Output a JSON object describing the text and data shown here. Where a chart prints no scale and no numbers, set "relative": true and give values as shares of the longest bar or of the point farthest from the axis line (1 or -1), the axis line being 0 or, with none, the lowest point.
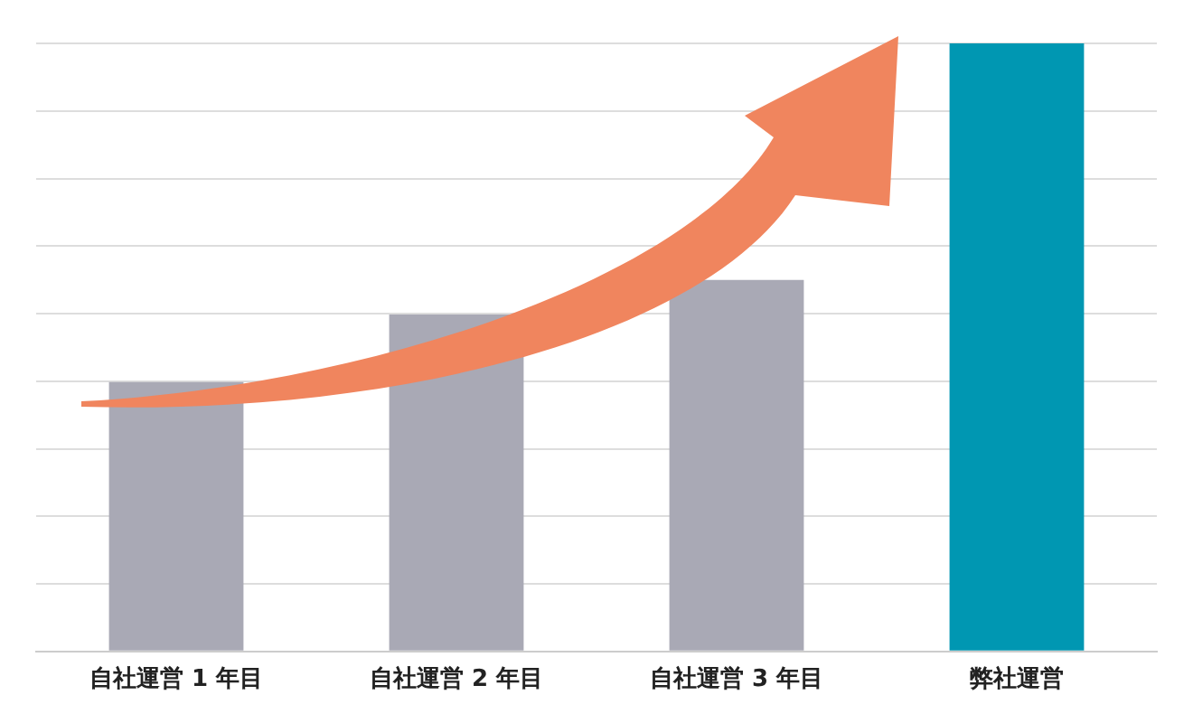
{
  "chart_data": {
    "type": "bar",
    "relative": true,
    "categories": [
      "自社運営 1 年目",
      "自社運営 2 年目",
      "自社運営 3 年目",
      "弊社運営"
    ],
    "values": [
      0.443,
      0.554,
      0.611,
      1
    ],
    "colors": [
      "#a9a9b5",
      "#a9a9b5",
      "#a9a9b5",
      "#0097b2"
    ],
    "grid": "y",
    "legend": false
  }
}
